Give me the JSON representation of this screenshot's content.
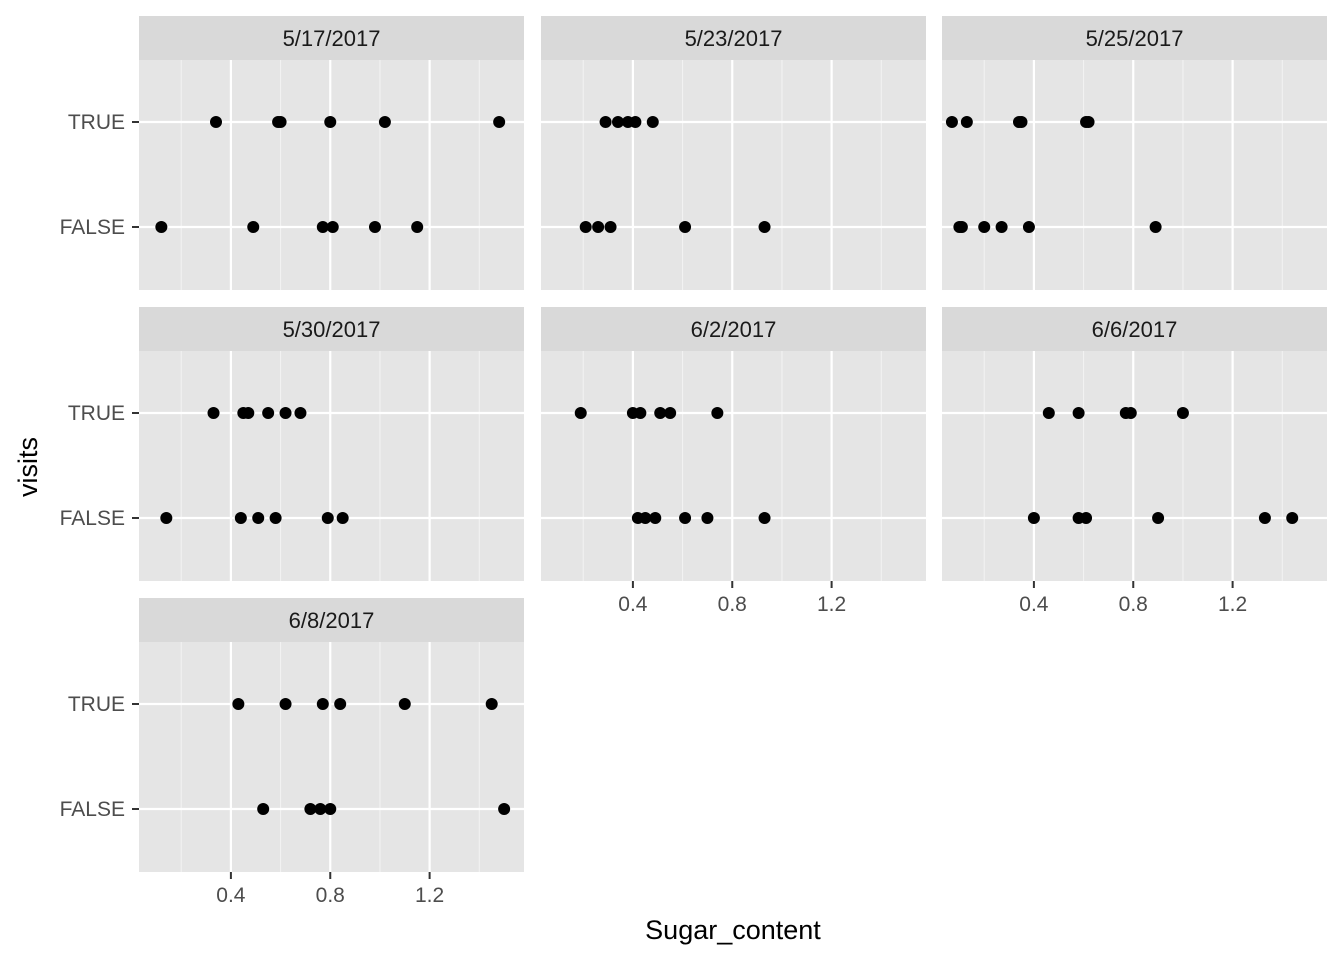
{
  "chart_data": {
    "type": "scatter",
    "facet_by": "date",
    "xlabel": "Sugar_content",
    "ylabel": "visits",
    "xlim": [
      0.03,
      1.58
    ],
    "x_ticks": [
      0.4,
      0.8,
      1.2
    ],
    "x_tick_labels": [
      "0.4",
      "0.8",
      "1.2"
    ],
    "categories": [
      "FALSE",
      "TRUE"
    ],
    "grid": true,
    "facets": [
      {
        "title": "5/17/2017",
        "points": [
          {
            "y": "TRUE",
            "x": 0.34
          },
          {
            "y": "TRUE",
            "x": 0.59
          },
          {
            "y": "TRUE",
            "x": 0.6
          },
          {
            "y": "TRUE",
            "x": 0.8
          },
          {
            "y": "TRUE",
            "x": 1.02
          },
          {
            "y": "TRUE",
            "x": 1.48
          },
          {
            "y": "FALSE",
            "x": 0.12
          },
          {
            "y": "FALSE",
            "x": 0.49
          },
          {
            "y": "FALSE",
            "x": 0.77
          },
          {
            "y": "FALSE",
            "x": 0.81
          },
          {
            "y": "FALSE",
            "x": 0.98
          },
          {
            "y": "FALSE",
            "x": 1.15
          }
        ]
      },
      {
        "title": "5/23/2017",
        "points": [
          {
            "y": "TRUE",
            "x": 0.29
          },
          {
            "y": "TRUE",
            "x": 0.34
          },
          {
            "y": "TRUE",
            "x": 0.38
          },
          {
            "y": "TRUE",
            "x": 0.41
          },
          {
            "y": "TRUE",
            "x": 0.48
          },
          {
            "y": "FALSE",
            "x": 0.21
          },
          {
            "y": "FALSE",
            "x": 0.26
          },
          {
            "y": "FALSE",
            "x": 0.31
          },
          {
            "y": "FALSE",
            "x": 0.61
          },
          {
            "y": "FALSE",
            "x": 0.93
          }
        ]
      },
      {
        "title": "5/25/2017",
        "points": [
          {
            "y": "TRUE",
            "x": 0.07
          },
          {
            "y": "TRUE",
            "x": 0.13
          },
          {
            "y": "TRUE",
            "x": 0.34
          },
          {
            "y": "TRUE",
            "x": 0.35
          },
          {
            "y": "TRUE",
            "x": 0.61
          },
          {
            "y": "TRUE",
            "x": 0.62
          },
          {
            "y": "FALSE",
            "x": 0.1
          },
          {
            "y": "FALSE",
            "x": 0.11
          },
          {
            "y": "FALSE",
            "x": 0.2
          },
          {
            "y": "FALSE",
            "x": 0.27
          },
          {
            "y": "FALSE",
            "x": 0.38
          },
          {
            "y": "FALSE",
            "x": 0.89
          }
        ]
      },
      {
        "title": "5/30/2017",
        "points": [
          {
            "y": "TRUE",
            "x": 0.33
          },
          {
            "y": "TRUE",
            "x": 0.45
          },
          {
            "y": "TRUE",
            "x": 0.47
          },
          {
            "y": "TRUE",
            "x": 0.55
          },
          {
            "y": "TRUE",
            "x": 0.62
          },
          {
            "y": "TRUE",
            "x": 0.68
          },
          {
            "y": "FALSE",
            "x": 0.14
          },
          {
            "y": "FALSE",
            "x": 0.44
          },
          {
            "y": "FALSE",
            "x": 0.51
          },
          {
            "y": "FALSE",
            "x": 0.58
          },
          {
            "y": "FALSE",
            "x": 0.79
          },
          {
            "y": "FALSE",
            "x": 0.85
          }
        ]
      },
      {
        "title": "6/2/2017",
        "points": [
          {
            "y": "TRUE",
            "x": 0.19
          },
          {
            "y": "TRUE",
            "x": 0.4
          },
          {
            "y": "TRUE",
            "x": 0.43
          },
          {
            "y": "TRUE",
            "x": 0.51
          },
          {
            "y": "TRUE",
            "x": 0.55
          },
          {
            "y": "TRUE",
            "x": 0.74
          },
          {
            "y": "FALSE",
            "x": 0.42
          },
          {
            "y": "FALSE",
            "x": 0.45
          },
          {
            "y": "FALSE",
            "x": 0.49
          },
          {
            "y": "FALSE",
            "x": 0.61
          },
          {
            "y": "FALSE",
            "x": 0.7
          },
          {
            "y": "FALSE",
            "x": 0.93
          }
        ]
      },
      {
        "title": "6/6/2017",
        "points": [
          {
            "y": "TRUE",
            "x": 0.46
          },
          {
            "y": "TRUE",
            "x": 0.58
          },
          {
            "y": "TRUE",
            "x": 0.77
          },
          {
            "y": "TRUE",
            "x": 0.79
          },
          {
            "y": "TRUE",
            "x": 1.0
          },
          {
            "y": "FALSE",
            "x": 0.4
          },
          {
            "y": "FALSE",
            "x": 0.58
          },
          {
            "y": "FALSE",
            "x": 0.61
          },
          {
            "y": "FALSE",
            "x": 0.9
          },
          {
            "y": "FALSE",
            "x": 1.33
          },
          {
            "y": "FALSE",
            "x": 1.44
          }
        ]
      },
      {
        "title": "6/8/2017",
        "points": [
          {
            "y": "TRUE",
            "x": 0.43
          },
          {
            "y": "TRUE",
            "x": 0.62
          },
          {
            "y": "TRUE",
            "x": 0.77
          },
          {
            "y": "TRUE",
            "x": 0.84
          },
          {
            "y": "TRUE",
            "x": 1.1
          },
          {
            "y": "TRUE",
            "x": 1.45
          },
          {
            "y": "FALSE",
            "x": 0.53
          },
          {
            "y": "FALSE",
            "x": 0.72
          },
          {
            "y": "FALSE",
            "x": 0.76
          },
          {
            "y": "FALSE",
            "x": 0.8
          },
          {
            "y": "FALSE",
            "x": 1.5
          }
        ]
      }
    ]
  }
}
